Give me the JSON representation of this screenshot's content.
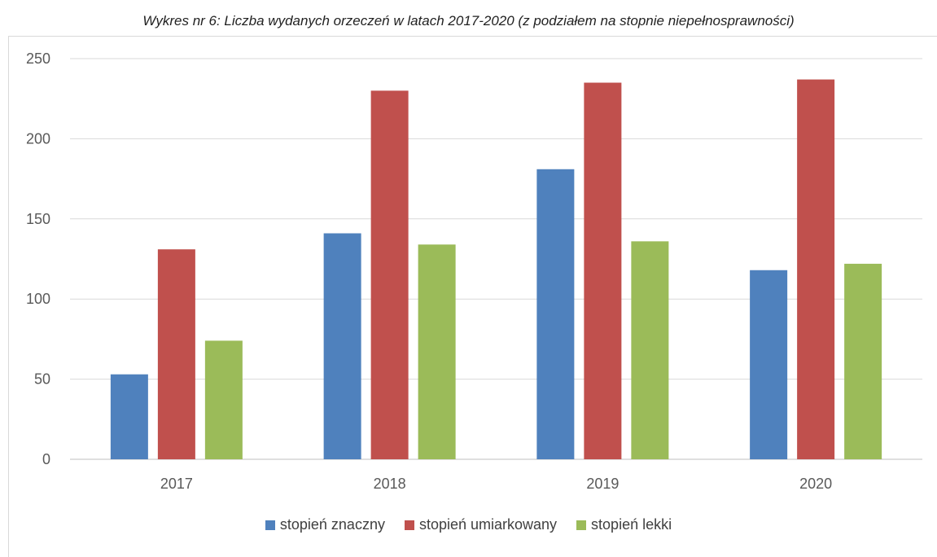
{
  "chart_data": {
    "type": "bar",
    "title": "Wykres nr 6: Liczba wydanych orzeczeń w latach 2017-2020 (z podziałem na stopnie niepełnosprawności)",
    "xlabel": "",
    "ylabel": "",
    "categories": [
      "2017",
      "2018",
      "2019",
      "2020"
    ],
    "ylim": [
      0,
      250
    ],
    "yticks": [
      "0",
      "50",
      "100",
      "150",
      "200",
      "250"
    ],
    "grid": true,
    "legend_position": "bottom",
    "series": [
      {
        "name": "stopień znaczny",
        "color": "#4f81bd",
        "values": [
          53,
          141,
          181,
          118
        ]
      },
      {
        "name": "stopień umiarkowany",
        "color": "#c0504d",
        "values": [
          131,
          230,
          235,
          237
        ]
      },
      {
        "name": "stopień lekki",
        "color": "#9bbb59",
        "values": [
          74,
          134,
          136,
          122
        ]
      }
    ]
  }
}
